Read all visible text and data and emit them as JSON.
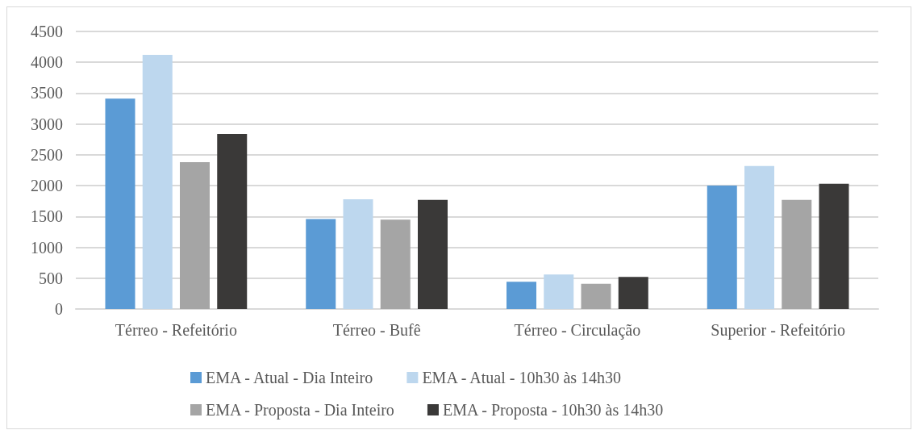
{
  "chart_data": {
    "type": "bar",
    "categories": [
      "Térreo - Refeitório",
      "Térreo - Bufê",
      "Térreo - Circulação",
      "Superior - Refeitório"
    ],
    "series": [
      {
        "name": "EMA - Atual - Dia Inteiro",
        "color": "#5b9bd5",
        "values": [
          3410,
          1460,
          440,
          2000
        ]
      },
      {
        "name": "EMA - Atual - 10h30 às 14h30",
        "color": "#bdd7ee",
        "values": [
          4120,
          1780,
          560,
          2320
        ]
      },
      {
        "name": "EMA - Proposta - Dia Inteiro",
        "color": "#a5a5a5",
        "values": [
          2380,
          1450,
          410,
          1770
        ]
      },
      {
        "name": "EMA - Proposta - 10h30 às 14h30",
        "color": "#3a3938",
        "values": [
          2840,
          1770,
          520,
          2030
        ]
      }
    ],
    "ylim": [
      0,
      4500
    ],
    "yticks": [
      0,
      500,
      1000,
      1500,
      2000,
      2500,
      3000,
      3500,
      4000,
      4500
    ],
    "grid": "y",
    "legend": "bottom"
  }
}
